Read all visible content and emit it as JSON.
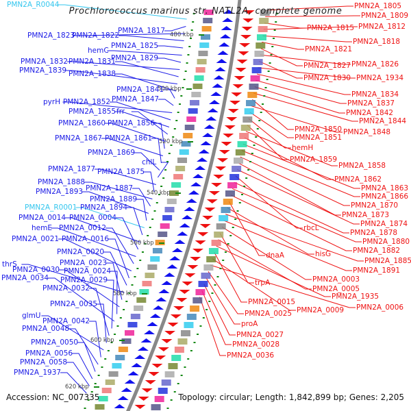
{
  "title": "Prochlorococcus marinus str. NATL2A, complete genome",
  "footer": {
    "accession": "Accession: NC_007335",
    "summary": "Topology: circular; Length: 1,842,899 bp; Genes: 2,205"
  },
  "colors": {
    "reverse_strand": "#1a1ae6",
    "forward_strand": "#ee1111",
    "rna": "#33c6ee",
    "backbone": "#888888",
    "ticks": "#118811"
  },
  "scale_ticks": [
    "480 kbp",
    "500 kbp",
    "520 kbp",
    "540 kbp",
    "560 kbp",
    "580 kbp",
    "600 kbp",
    "620 kbp"
  ],
  "left_labels": [
    {
      "text": "PMN2A_R0044",
      "kind": "rna"
    },
    {
      "text": "PMN2A_1817",
      "kind": "gene"
    },
    {
      "text": "PMN2A_1823",
      "kind": "gene"
    },
    {
      "text": "PMN2A_1822",
      "kind": "gene"
    },
    {
      "text": "PMN2A_1825",
      "kind": "gene"
    },
    {
      "text": "hemC",
      "kind": "gene"
    },
    {
      "text": "PMN2A_1829",
      "kind": "gene"
    },
    {
      "text": "PMN2A_1832",
      "kind": "gene"
    },
    {
      "text": "PMN2A_1831",
      "kind": "gene"
    },
    {
      "text": "PMN2A_1839",
      "kind": "gene"
    },
    {
      "text": "PMN2A_1838",
      "kind": "gene"
    },
    {
      "text": "PMN2A_1841",
      "kind": "gene"
    },
    {
      "text": "PMN2A_1847",
      "kind": "gene"
    },
    {
      "text": "pyrH",
      "kind": "gene"
    },
    {
      "text": "PMN2A_1852",
      "kind": "gene"
    },
    {
      "text": "PMN2A_1855",
      "kind": "gene"
    },
    {
      "text": "frr",
      "kind": "gene"
    },
    {
      "text": "PMN2A_1860",
      "kind": "gene"
    },
    {
      "text": "PMN2A_1856",
      "kind": "gene"
    },
    {
      "text": "PMN2A_1867",
      "kind": "gene"
    },
    {
      "text": "PMN2A_1861",
      "kind": "gene"
    },
    {
      "text": "PMN2A_1869",
      "kind": "gene"
    },
    {
      "text": "chlL",
      "kind": "gene"
    },
    {
      "text": "PMN2A_1877",
      "kind": "gene"
    },
    {
      "text": "PMN2A_1875",
      "kind": "gene"
    },
    {
      "text": "PMN2A_1888",
      "kind": "gene"
    },
    {
      "text": "PMN2A_1887",
      "kind": "gene"
    },
    {
      "text": "PMN2A_1893",
      "kind": "gene"
    },
    {
      "text": "PMN2A_1889",
      "kind": "gene"
    },
    {
      "text": "PMN2A_R0001",
      "kind": "rna"
    },
    {
      "text": "PMN2A_1894",
      "kind": "gene"
    },
    {
      "text": "PMN2A_0014",
      "kind": "gene"
    },
    {
      "text": "PMN2A_0004",
      "kind": "gene"
    },
    {
      "text": "hemE",
      "kind": "gene"
    },
    {
      "text": "PMN2A_0012",
      "kind": "gene"
    },
    {
      "text": "PMN2A_0021",
      "kind": "gene"
    },
    {
      "text": "PMN2A_0016",
      "kind": "gene"
    },
    {
      "text": "PMN2A_0020",
      "kind": "gene"
    },
    {
      "text": "thrS",
      "kind": "gene"
    },
    {
      "text": "PMN2A_0023",
      "kind": "gene"
    },
    {
      "text": "PMN2A_0030",
      "kind": "gene"
    },
    {
      "text": "PMN2A_0024",
      "kind": "gene"
    },
    {
      "text": "PMN2A_0034",
      "kind": "gene"
    },
    {
      "text": "PMN2A_0029",
      "kind": "gene"
    },
    {
      "text": "PMN2A_0032",
      "kind": "gene"
    },
    {
      "text": "PMN2A_0035",
      "kind": "gene"
    },
    {
      "text": "glmU",
      "kind": "gene"
    },
    {
      "text": "PMN2A_0042",
      "kind": "gene"
    },
    {
      "text": "PMN2A_0048",
      "kind": "gene"
    },
    {
      "text": "PMN2A_0050",
      "kind": "gene"
    },
    {
      "text": "PMN2A_0056",
      "kind": "gene"
    },
    {
      "text": "PMN2A_0058",
      "kind": "gene"
    },
    {
      "text": "PMN2A_1937",
      "kind": "gene"
    }
  ],
  "right_labels": [
    {
      "text": "PMN2A_1805"
    },
    {
      "text": "PMN2A_1809"
    },
    {
      "text": "PMN2A_1815"
    },
    {
      "text": "PMN2A_1812"
    },
    {
      "text": "PMN2A_1818"
    },
    {
      "text": "PMN2A_1821"
    },
    {
      "text": "PMN2A_1827"
    },
    {
      "text": "PMN2A_1826"
    },
    {
      "text": "PMN2A_1830"
    },
    {
      "text": "PMN2A_1934"
    },
    {
      "text": "PMN2A_1834"
    },
    {
      "text": "PMN2A_1837"
    },
    {
      "text": "PMN2A_1842"
    },
    {
      "text": "PMN2A_1844"
    },
    {
      "text": "PMN2A_1850"
    },
    {
      "text": "PMN2A_1848"
    },
    {
      "text": "PMN2A_1851"
    },
    {
      "text": "hemH"
    },
    {
      "text": "PMN2A_1859"
    },
    {
      "text": "PMN2A_1858"
    },
    {
      "text": "PMN2A_1862"
    },
    {
      "text": "PMN2A_1863"
    },
    {
      "text": "PMN2A_1866"
    },
    {
      "text": "PMN2A_1870"
    },
    {
      "text": "PMN2A_1873"
    },
    {
      "text": "PMN2A_1874"
    },
    {
      "text": "rbcL"
    },
    {
      "text": "PMN2A_1878"
    },
    {
      "text": "PMN2A_1880"
    },
    {
      "text": "PMN2A_1882"
    },
    {
      "text": "dnaA"
    },
    {
      "text": "hisG"
    },
    {
      "text": "PMN2A_1885"
    },
    {
      "text": "PMN2A_1891"
    },
    {
      "text": "PMN2A_0003"
    },
    {
      "text": "trpA"
    },
    {
      "text": "PMN2A_0005"
    },
    {
      "text": "PMN2A_1935"
    },
    {
      "text": "PMN2A_0015"
    },
    {
      "text": "PMN2A_0009"
    },
    {
      "text": "PMN2A_0006"
    },
    {
      "text": "PMN2A_0025"
    },
    {
      "text": "proA"
    },
    {
      "text": "PMN2A_0027"
    },
    {
      "text": "PMN2A_0028"
    },
    {
      "text": "PMN2A_0036"
    }
  ]
}
